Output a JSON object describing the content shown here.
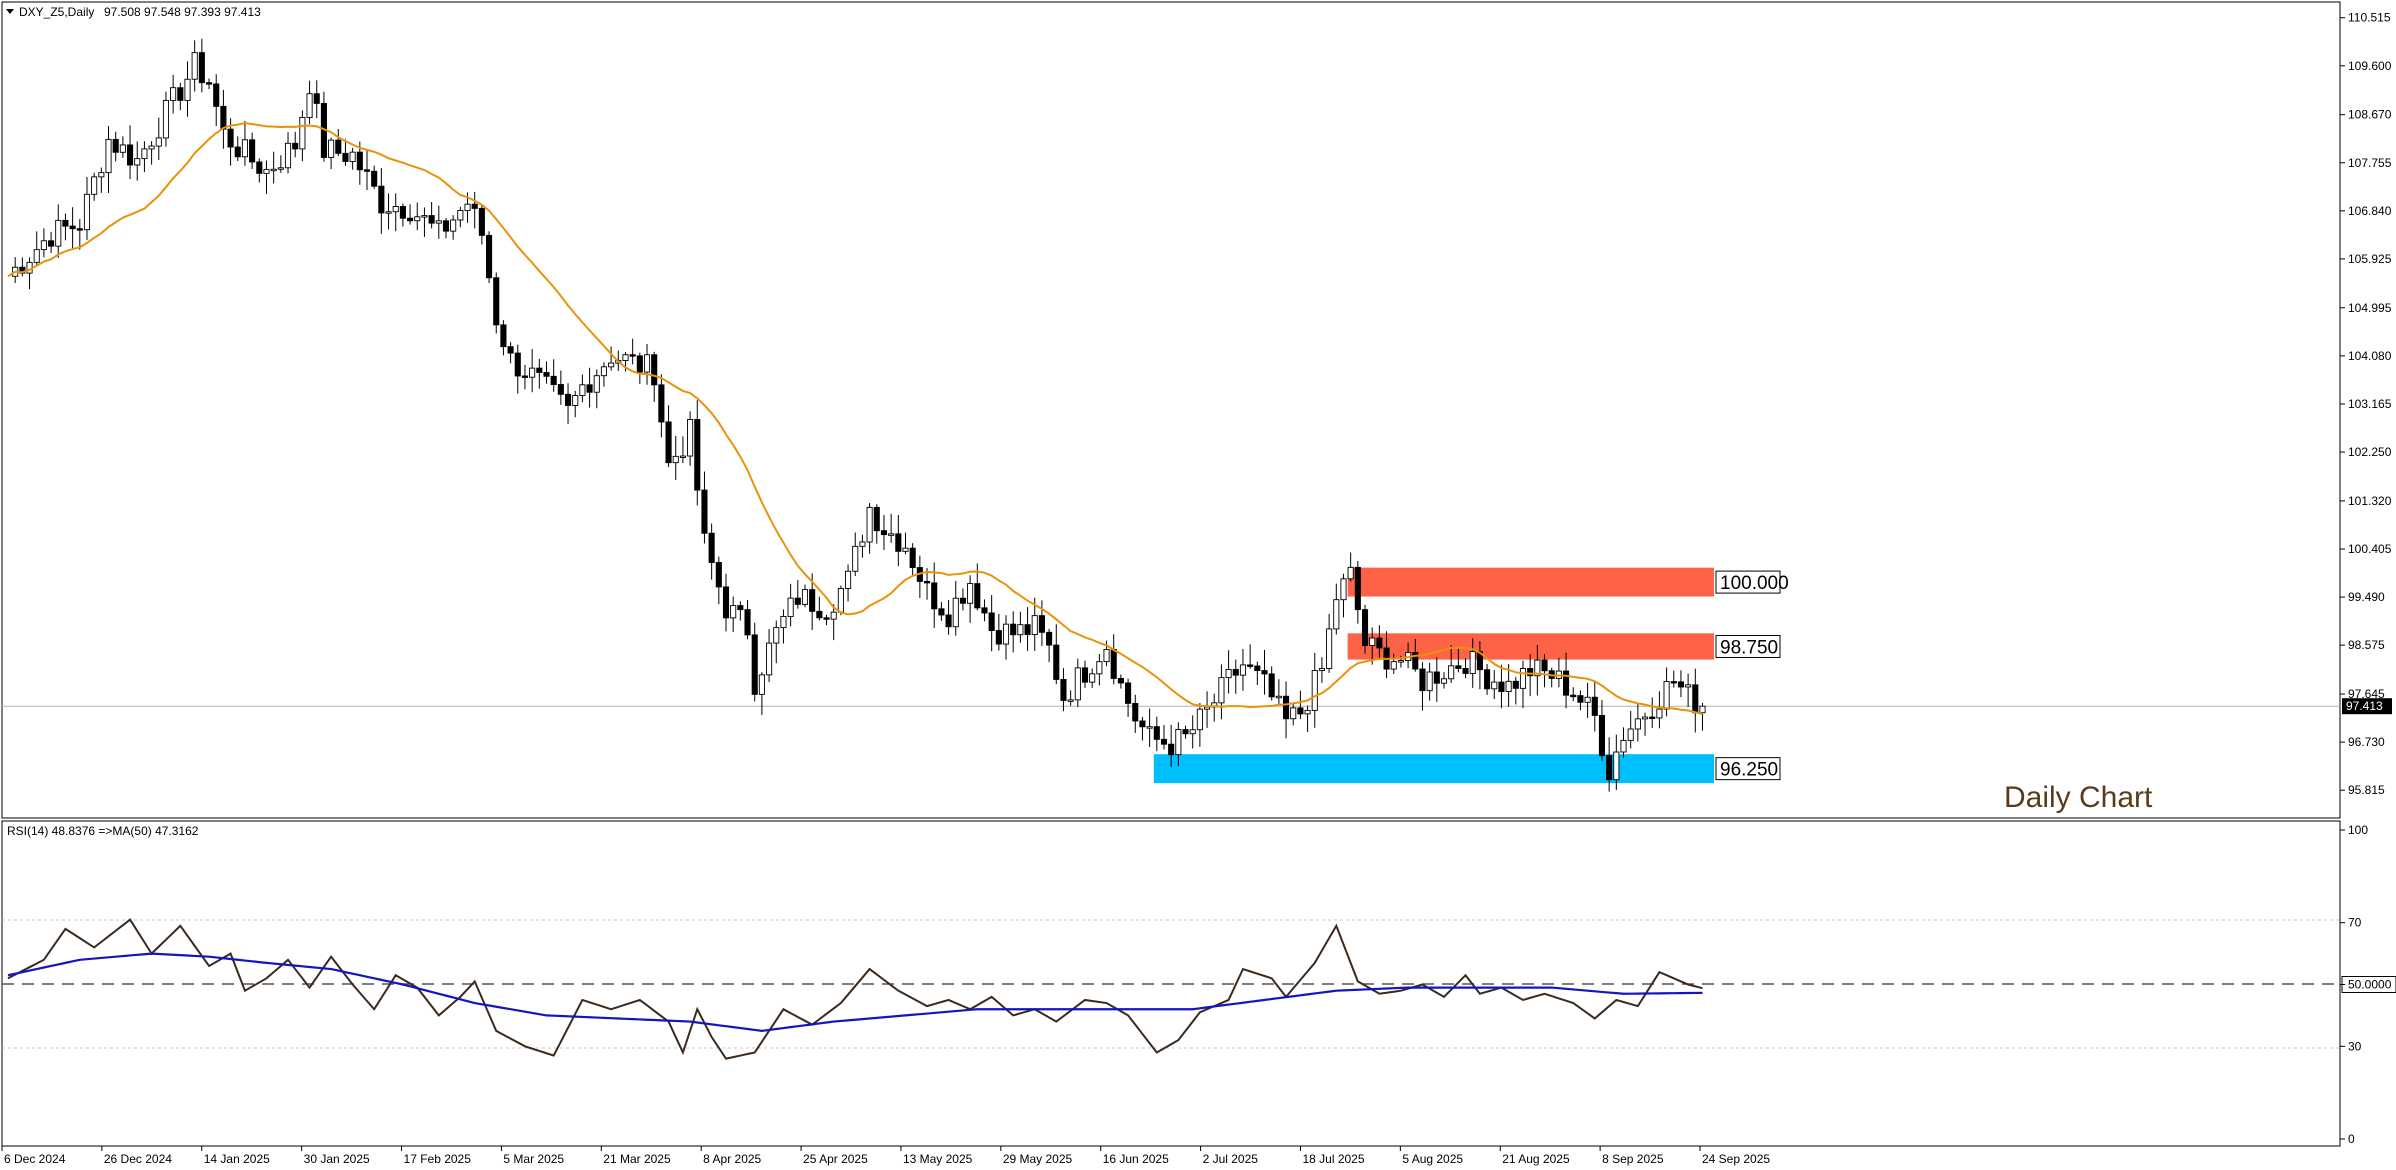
{
  "chart_data": [
    {
      "type": "candlestick",
      "title": "DXY_Z5,Daily",
      "ohlc_header": "97.508 97.548 97.393 97.413",
      "annotation": "Daily Chart",
      "y_ticks": [
        "110.515",
        "109.600",
        "108.670",
        "107.755",
        "106.840",
        "105.925",
        "104.995",
        "104.080",
        "103.165",
        "102.250",
        "101.320",
        "100.405",
        "99.490",
        "98.575",
        "97.645",
        "96.730",
        "95.815"
      ],
      "ylim": [
        95.4,
        110.7
      ],
      "last_price": "97.413",
      "last_price_value": 97.413,
      "x_tick_labels": [
        "6 Dec 2024",
        "26 Dec 2024",
        "14 Jan 2025",
        "30 Jan 2025",
        "17 Feb 2025",
        "5 Mar 2025",
        "21 Mar 2025",
        "8 Apr 2025",
        "25 Apr 2025",
        "13 May 2025",
        "29 May 2025",
        "16 Jun 2025",
        "2 Jul 2025",
        "18 Jul 2025",
        "5 Aug 2025",
        "21 Aug 2025",
        "8 Sep 2025",
        "24 Sep 2025"
      ],
      "zones": [
        {
          "label": "100.000",
          "low": 99.5,
          "high": 100.05,
          "color": "#ff6347",
          "start_bar": 187
        },
        {
          "label": "98.750",
          "low": 98.3,
          "high": 98.8,
          "color": "#ff6347",
          "start_bar": 187
        },
        {
          "label": "96.250",
          "low": 95.95,
          "high": 96.5,
          "color": "#00bfff",
          "start_bar": 160
        }
      ],
      "close_path": [
        [
          0,
          105.6
        ],
        [
          6,
          106.4
        ],
        [
          10,
          106.6
        ],
        [
          14,
          108.2
        ],
        [
          18,
          107.8
        ],
        [
          22,
          108.7
        ],
        [
          26,
          109.6
        ],
        [
          28,
          109.3
        ],
        [
          30,
          108.3
        ],
        [
          34,
          107.8
        ],
        [
          36,
          107.6
        ],
        [
          40,
          108.1
        ],
        [
          42,
          109.3
        ],
        [
          44,
          108.0
        ],
        [
          48,
          107.9
        ],
        [
          52,
          107.0
        ],
        [
          56,
          106.9
        ],
        [
          60,
          106.4
        ],
        [
          64,
          107.0
        ],
        [
          66,
          106.4
        ],
        [
          68,
          104.8
        ],
        [
          70,
          104.0
        ],
        [
          73,
          103.7
        ],
        [
          76,
          103.3
        ],
        [
          78,
          103.0
        ],
        [
          80,
          103.5
        ],
        [
          84,
          104.1
        ],
        [
          86,
          104.0
        ],
        [
          90,
          103.8
        ],
        [
          92,
          102.0
        ],
        [
          95,
          102.6
        ],
        [
          97,
          100.5
        ],
        [
          100,
          99.3
        ],
        [
          103,
          98.9
        ],
        [
          104,
          97.9
        ],
        [
          107,
          98.8
        ],
        [
          110,
          99.5
        ],
        [
          114,
          99.3
        ],
        [
          117,
          99.8
        ],
        [
          120,
          101.2
        ],
        [
          122,
          100.8
        ],
        [
          125,
          100.5
        ],
        [
          128,
          99.6
        ],
        [
          131,
          99.2
        ],
        [
          134,
          99.8
        ],
        [
          137,
          98.9
        ],
        [
          140,
          98.8
        ],
        [
          143,
          98.9
        ],
        [
          145,
          98.5
        ],
        [
          147,
          97.6
        ],
        [
          150,
          98.1
        ],
        [
          153,
          98.6
        ],
        [
          155,
          97.8
        ],
        [
          157,
          97.2
        ],
        [
          159,
          96.8
        ],
        [
          162,
          96.7
        ],
        [
          164,
          96.8
        ],
        [
          167,
          97.3
        ],
        [
          170,
          97.9
        ],
        [
          172,
          98.2
        ],
        [
          175,
          97.8
        ],
        [
          178,
          97.1
        ],
        [
          180,
          97.3
        ],
        [
          183,
          98.1
        ],
        [
          185,
          99.5
        ],
        [
          187,
          99.9
        ],
        [
          189,
          98.6
        ],
        [
          191,
          98.4
        ],
        [
          194,
          98.3
        ],
        [
          197,
          97.9
        ],
        [
          200,
          98.1
        ],
        [
          203,
          98.3
        ],
        [
          206,
          98.0
        ],
        [
          209,
          97.8
        ],
        [
          212,
          98.1
        ],
        [
          215,
          98.0
        ],
        [
          218,
          97.7
        ],
        [
          221,
          97.2
        ],
        [
          223,
          96.2
        ],
        [
          225,
          96.9
        ],
        [
          228,
          97.3
        ],
        [
          230,
          97.6
        ],
        [
          232,
          97.9
        ],
        [
          234,
          97.6
        ],
        [
          236,
          97.413
        ]
      ],
      "rsi": {
        "label": "RSI(14) 48.8376  =>MA(50) 47.3162",
        "y_ticks": [
          "100",
          "70",
          "50.0000",
          "30",
          "0"
        ],
        "ylim": [
          0,
          100
        ],
        "level_line": 50,
        "values_path": [
          [
            0,
            52
          ],
          [
            5,
            58
          ],
          [
            8,
            68
          ],
          [
            12,
            62
          ],
          [
            17,
            71
          ],
          [
            20,
            60
          ],
          [
            24,
            69
          ],
          [
            28,
            56
          ],
          [
            31,
            60
          ],
          [
            33,
            48
          ],
          [
            36,
            52
          ],
          [
            39,
            58
          ],
          [
            42,
            49
          ],
          [
            45,
            59
          ],
          [
            48,
            50
          ],
          [
            51,
            42
          ],
          [
            54,
            53
          ],
          [
            57,
            49
          ],
          [
            60,
            40
          ],
          [
            63,
            46
          ],
          [
            65,
            51
          ],
          [
            68,
            35
          ],
          [
            72,
            30
          ],
          [
            76,
            27
          ],
          [
            80,
            45
          ],
          [
            84,
            42
          ],
          [
            88,
            45
          ],
          [
            92,
            38
          ],
          [
            94,
            28
          ],
          [
            96,
            42
          ],
          [
            98,
            33
          ],
          [
            100,
            26
          ],
          [
            104,
            28
          ],
          [
            108,
            42
          ],
          [
            112,
            37
          ],
          [
            116,
            44
          ],
          [
            120,
            55
          ],
          [
            124,
            48
          ],
          [
            128,
            43
          ],
          [
            131,
            45
          ],
          [
            134,
            42
          ],
          [
            137,
            46
          ],
          [
            140,
            40
          ],
          [
            143,
            42
          ],
          [
            146,
            38
          ],
          [
            150,
            45
          ],
          [
            153,
            44
          ],
          [
            156,
            40
          ],
          [
            160,
            28
          ],
          [
            163,
            32
          ],
          [
            166,
            41
          ],
          [
            170,
            45
          ],
          [
            172,
            55
          ],
          [
            176,
            52
          ],
          [
            178,
            46
          ],
          [
            182,
            57
          ],
          [
            185,
            69
          ],
          [
            188,
            51
          ],
          [
            191,
            47
          ],
          [
            194,
            48
          ],
          [
            197,
            50
          ],
          [
            200,
            46
          ],
          [
            203,
            53
          ],
          [
            205,
            47
          ],
          [
            208,
            49
          ],
          [
            211,
            45
          ],
          [
            214,
            47
          ],
          [
            218,
            44
          ],
          [
            221,
            39
          ],
          [
            224,
            45
          ],
          [
            227,
            43
          ],
          [
            230,
            54
          ],
          [
            232,
            52
          ],
          [
            234,
            50
          ],
          [
            236,
            48.8
          ]
        ],
        "ma_path": [
          [
            0,
            53
          ],
          [
            10,
            58
          ],
          [
            20,
            60
          ],
          [
            28,
            59
          ],
          [
            36,
            57
          ],
          [
            45,
            55
          ],
          [
            55,
            50
          ],
          [
            65,
            44
          ],
          [
            75,
            40
          ],
          [
            85,
            39
          ],
          [
            95,
            38
          ],
          [
            105,
            35
          ],
          [
            115,
            38
          ],
          [
            125,
            40
          ],
          [
            135,
            42
          ],
          [
            145,
            42
          ],
          [
            155,
            42
          ],
          [
            165,
            42
          ],
          [
            175,
            45
          ],
          [
            185,
            48
          ],
          [
            195,
            49
          ],
          [
            205,
            49
          ],
          [
            215,
            49
          ],
          [
            225,
            47
          ],
          [
            236,
            47.3
          ]
        ]
      }
    }
  ],
  "colors": {
    "bull_candle": "#ffffff",
    "bear_candle": "#000000",
    "ma_line": "#e8930a",
    "rsi_line": "#3c2a1e",
    "rsi_ma_line": "#1515c0",
    "annotation_text": "#5a3a1a"
  }
}
